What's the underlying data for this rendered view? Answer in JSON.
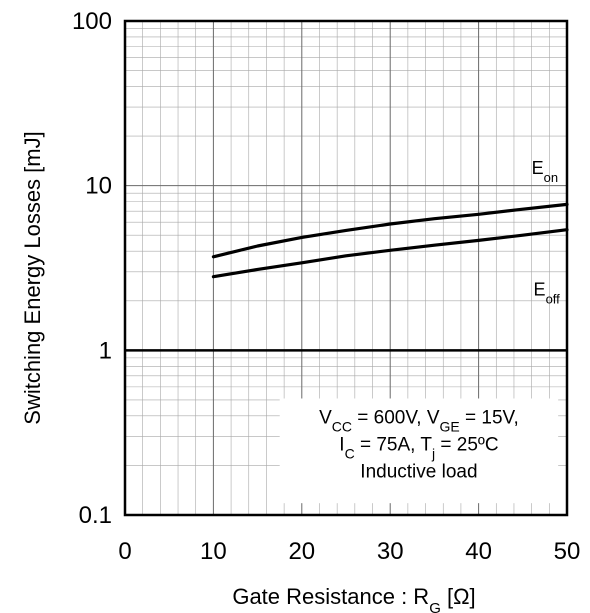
{
  "chart_data": {
    "type": "line",
    "xlabel": {
      "main": "Gate Resistance : R",
      "sub": "G",
      "unit": " [Ω]"
    },
    "ylabel": "Switching Energy Losses [mJ]",
    "x_ticks": [
      "0",
      "10",
      "20",
      "30",
      "40",
      "50"
    ],
    "y_ticks": [
      "0.1",
      "1",
      "10",
      "100"
    ],
    "xlim": [
      0,
      50
    ],
    "ylim": [
      0.1,
      100
    ],
    "yscale": "log",
    "grid": true,
    "series": [
      {
        "name": "Eon",
        "label_main": "E",
        "label_sub": "on",
        "x": [
          10,
          15,
          20,
          25,
          30,
          35,
          40,
          45,
          50
        ],
        "y": [
          3.7,
          4.3,
          4.85,
          5.35,
          5.85,
          6.3,
          6.7,
          7.2,
          7.7
        ]
      },
      {
        "name": "Eoff",
        "label_main": "E",
        "label_sub": "off",
        "x": [
          10,
          15,
          20,
          25,
          30,
          35,
          40,
          45,
          50
        ],
        "y": [
          2.8,
          3.1,
          3.4,
          3.75,
          4.05,
          4.35,
          4.65,
          5.0,
          5.4
        ]
      }
    ],
    "annotation": {
      "line1": [
        {
          "t": "V",
          "sub": false
        },
        {
          "t": "CC",
          "sub": true
        },
        {
          "t": " = 600V, V",
          "sub": false
        },
        {
          "t": "GE",
          "sub": true
        },
        {
          "t": " = 15V,",
          "sub": false
        }
      ],
      "line2": [
        {
          "t": "I",
          "sub": false
        },
        {
          "t": "C",
          "sub": true
        },
        {
          "t": " = 75A, T",
          "sub": false
        },
        {
          "t": "j",
          "sub": true
        },
        {
          "t": " = 25ºC",
          "sub": false
        }
      ],
      "line3": "Inductive load"
    }
  }
}
